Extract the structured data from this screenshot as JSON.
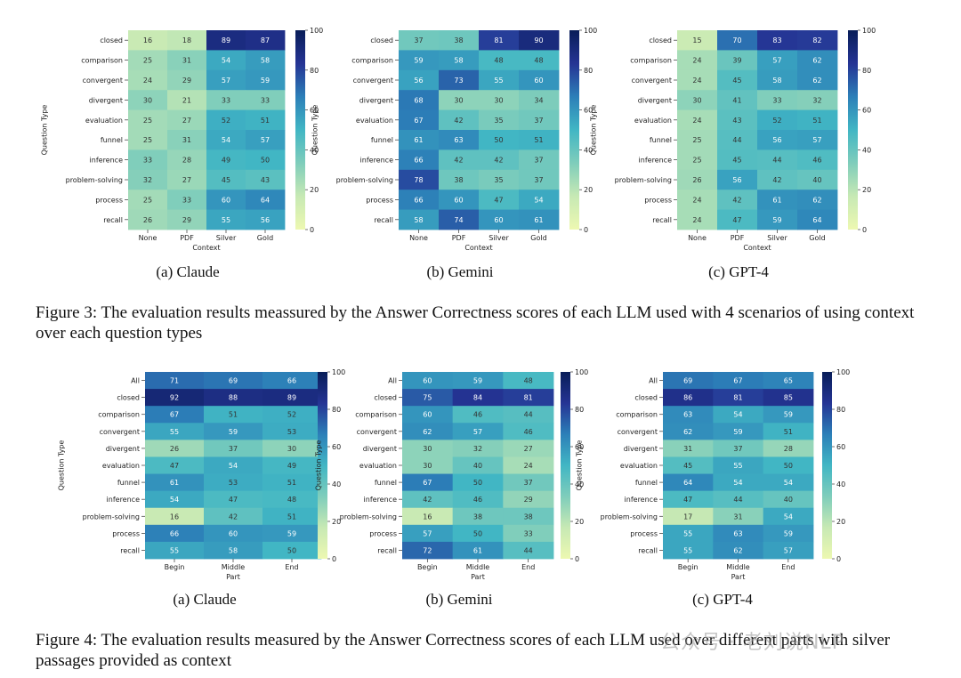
{
  "colorscale": [
    "#edf8b1",
    "#c7e9b4",
    "#7fcdbb",
    "#41b6c4",
    "#2c7fb8",
    "#253494",
    "#081d58"
  ],
  "fig3": {
    "caption": "Figure 3: The evaluation results meassured by the Answer Correctness scores of each LLM used with 4 scenarios of using context over each question types",
    "subcaptions": [
      "(a) Claude",
      "(b) Gemini",
      "(c) GPT-4"
    ]
  },
  "fig4": {
    "caption": "Figure 4: The evaluation results measured by the Answer Correctness scores of each LLM used over different parts with silver passages provided as context",
    "subcaptions": [
      "(a) Claude",
      "(b) Gemini",
      "(c) GPT-4"
    ]
  },
  "watermark": "公众号 · 老刘说NLP",
  "chart_data": [
    {
      "type": "heatmap",
      "figure": "3",
      "model": "Claude",
      "rows": [
        "closed",
        "comparison",
        "convergent",
        "divergent",
        "evaluation",
        "funnel",
        "inference",
        "problem-solving",
        "process",
        "recall"
      ],
      "columns": [
        "None",
        "PDF",
        "Silver",
        "Gold"
      ],
      "values": [
        [
          16,
          18,
          89,
          87
        ],
        [
          25,
          31,
          54,
          58
        ],
        [
          24,
          29,
          57,
          59
        ],
        [
          30,
          21,
          33,
          33
        ],
        [
          25,
          27,
          52,
          51
        ],
        [
          25,
          31,
          54,
          57
        ],
        [
          33,
          28,
          49,
          50
        ],
        [
          32,
          27,
          45,
          43
        ],
        [
          25,
          33,
          60,
          64
        ],
        [
          26,
          29,
          55,
          56
        ]
      ],
      "xlabel": "Context",
      "ylabel": "Question Type",
      "colorbar_range": [
        0,
        100
      ],
      "colorbar_ticks": [
        0,
        20,
        40,
        60,
        80,
        100
      ]
    },
    {
      "type": "heatmap",
      "figure": "3",
      "model": "Gemini",
      "rows": [
        "closed",
        "comparison",
        "convergent",
        "divergent",
        "evaluation",
        "funnel",
        "inference",
        "problem-solving",
        "process",
        "recall"
      ],
      "columns": [
        "None",
        "PDF",
        "Silver",
        "Gold"
      ],
      "values": [
        [
          37,
          38,
          81,
          90
        ],
        [
          59,
          58,
          48,
          48
        ],
        [
          56,
          73,
          55,
          60
        ],
        [
          68,
          30,
          30,
          34
        ],
        [
          67,
          42,
          35,
          37
        ],
        [
          61,
          63,
          50,
          51
        ],
        [
          66,
          42,
          42,
          37
        ],
        [
          78,
          38,
          35,
          37
        ],
        [
          66,
          60,
          47,
          54
        ],
        [
          58,
          74,
          60,
          61
        ]
      ],
      "xlabel": "Context",
      "ylabel": "Question Type",
      "colorbar_range": [
        0,
        100
      ],
      "colorbar_ticks": [
        0,
        20,
        40,
        60,
        80,
        100
      ]
    },
    {
      "type": "heatmap",
      "figure": "3",
      "model": "GPT-4",
      "rows": [
        "closed",
        "comparison",
        "convergent",
        "divergent",
        "evaluation",
        "funnel",
        "inference",
        "problem-solving",
        "process",
        "recall"
      ],
      "columns": [
        "None",
        "PDF",
        "Silver",
        "Gold"
      ],
      "values": [
        [
          15,
          70,
          83,
          82
        ],
        [
          24,
          39,
          57,
          62
        ],
        [
          24,
          45,
          58,
          62
        ],
        [
          30,
          41,
          33,
          32
        ],
        [
          24,
          43,
          52,
          51
        ],
        [
          25,
          44,
          56,
          57
        ],
        [
          25,
          45,
          44,
          46
        ],
        [
          26,
          56,
          42,
          40
        ],
        [
          24,
          42,
          61,
          62
        ],
        [
          24,
          47,
          59,
          64
        ]
      ],
      "xlabel": "Context",
      "ylabel": "Question Type",
      "colorbar_range": [
        0,
        100
      ],
      "colorbar_ticks": [
        0,
        20,
        40,
        60,
        80,
        100
      ]
    },
    {
      "type": "heatmap",
      "figure": "4",
      "model": "Claude",
      "rows": [
        "All",
        "closed",
        "comparison",
        "convergent",
        "divergent",
        "evaluation",
        "funnel",
        "inference",
        "problem-solving",
        "process",
        "recall"
      ],
      "columns": [
        "Begin",
        "Middle",
        "End"
      ],
      "values": [
        [
          71,
          69,
          66
        ],
        [
          92,
          88,
          89
        ],
        [
          67,
          51,
          52
        ],
        [
          55,
          59,
          53
        ],
        [
          26,
          37,
          30
        ],
        [
          47,
          54,
          49
        ],
        [
          61,
          53,
          51
        ],
        [
          54,
          47,
          48
        ],
        [
          16,
          42,
          51
        ],
        [
          66,
          60,
          59
        ],
        [
          55,
          58,
          50
        ]
      ],
      "xlabel": "Part",
      "ylabel": "Question Type",
      "colorbar_range": [
        0,
        100
      ],
      "colorbar_ticks": [
        0,
        20,
        40,
        60,
        80,
        100
      ]
    },
    {
      "type": "heatmap",
      "figure": "4",
      "model": "Gemini",
      "rows": [
        "All",
        "closed",
        "comparison",
        "convergent",
        "divergent",
        "evaluation",
        "funnel",
        "inference",
        "problem-solving",
        "process",
        "recall"
      ],
      "columns": [
        "Begin",
        "Middle",
        "End"
      ],
      "values": [
        [
          60,
          59,
          48
        ],
        [
          75,
          84,
          81
        ],
        [
          60,
          46,
          44
        ],
        [
          62,
          57,
          46
        ],
        [
          30,
          32,
          27
        ],
        [
          30,
          40,
          24
        ],
        [
          67,
          50,
          37
        ],
        [
          42,
          46,
          29
        ],
        [
          16,
          38,
          38
        ],
        [
          57,
          50,
          33
        ],
        [
          72,
          61,
          44
        ]
      ],
      "xlabel": "Part",
      "ylabel": "Question Type",
      "colorbar_range": [
        0,
        100
      ],
      "colorbar_ticks": [
        0,
        20,
        40,
        60,
        80,
        100
      ]
    },
    {
      "type": "heatmap",
      "figure": "4",
      "model": "GPT-4",
      "rows": [
        "All",
        "closed",
        "comparison",
        "convergent",
        "divergent",
        "evaluation",
        "funnel",
        "inference",
        "problem-solving",
        "process",
        "recall"
      ],
      "columns": [
        "Begin",
        "Middle",
        "End"
      ],
      "values": [
        [
          69,
          67,
          65
        ],
        [
          86,
          81,
          85
        ],
        [
          63,
          54,
          59
        ],
        [
          62,
          59,
          51
        ],
        [
          31,
          37,
          28
        ],
        [
          45,
          55,
          50
        ],
        [
          64,
          54,
          54
        ],
        [
          47,
          44,
          40
        ],
        [
          17,
          31,
          54
        ],
        [
          55,
          63,
          59
        ],
        [
          55,
          62,
          57
        ]
      ],
      "xlabel": "Part",
      "ylabel": "Question Type",
      "colorbar_range": [
        0,
        100
      ],
      "colorbar_ticks": [
        0,
        20,
        40,
        60,
        80,
        100
      ]
    }
  ]
}
